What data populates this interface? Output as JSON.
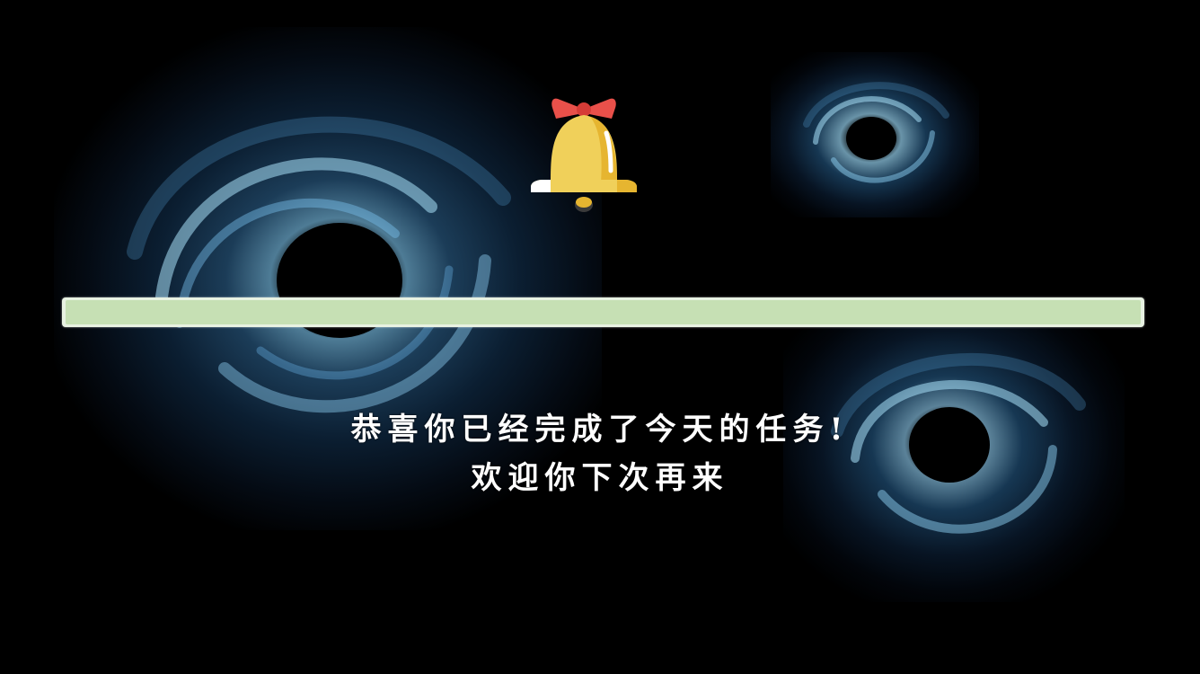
{
  "scene": {
    "background_color": "#000000",
    "decorations": [
      "vortex-left",
      "vortex-top-right",
      "vortex-bottom-right"
    ]
  },
  "bell": {
    "icon": "bell-icon",
    "body_color": "#f0d05a",
    "bow_color": "#e9504a"
  },
  "progress": {
    "value_percent": 100,
    "fill_color": "#c6e0b4"
  },
  "message": {
    "line1": "恭喜你已经完成了今天的任务!",
    "line2": "欢迎你下次再来"
  }
}
